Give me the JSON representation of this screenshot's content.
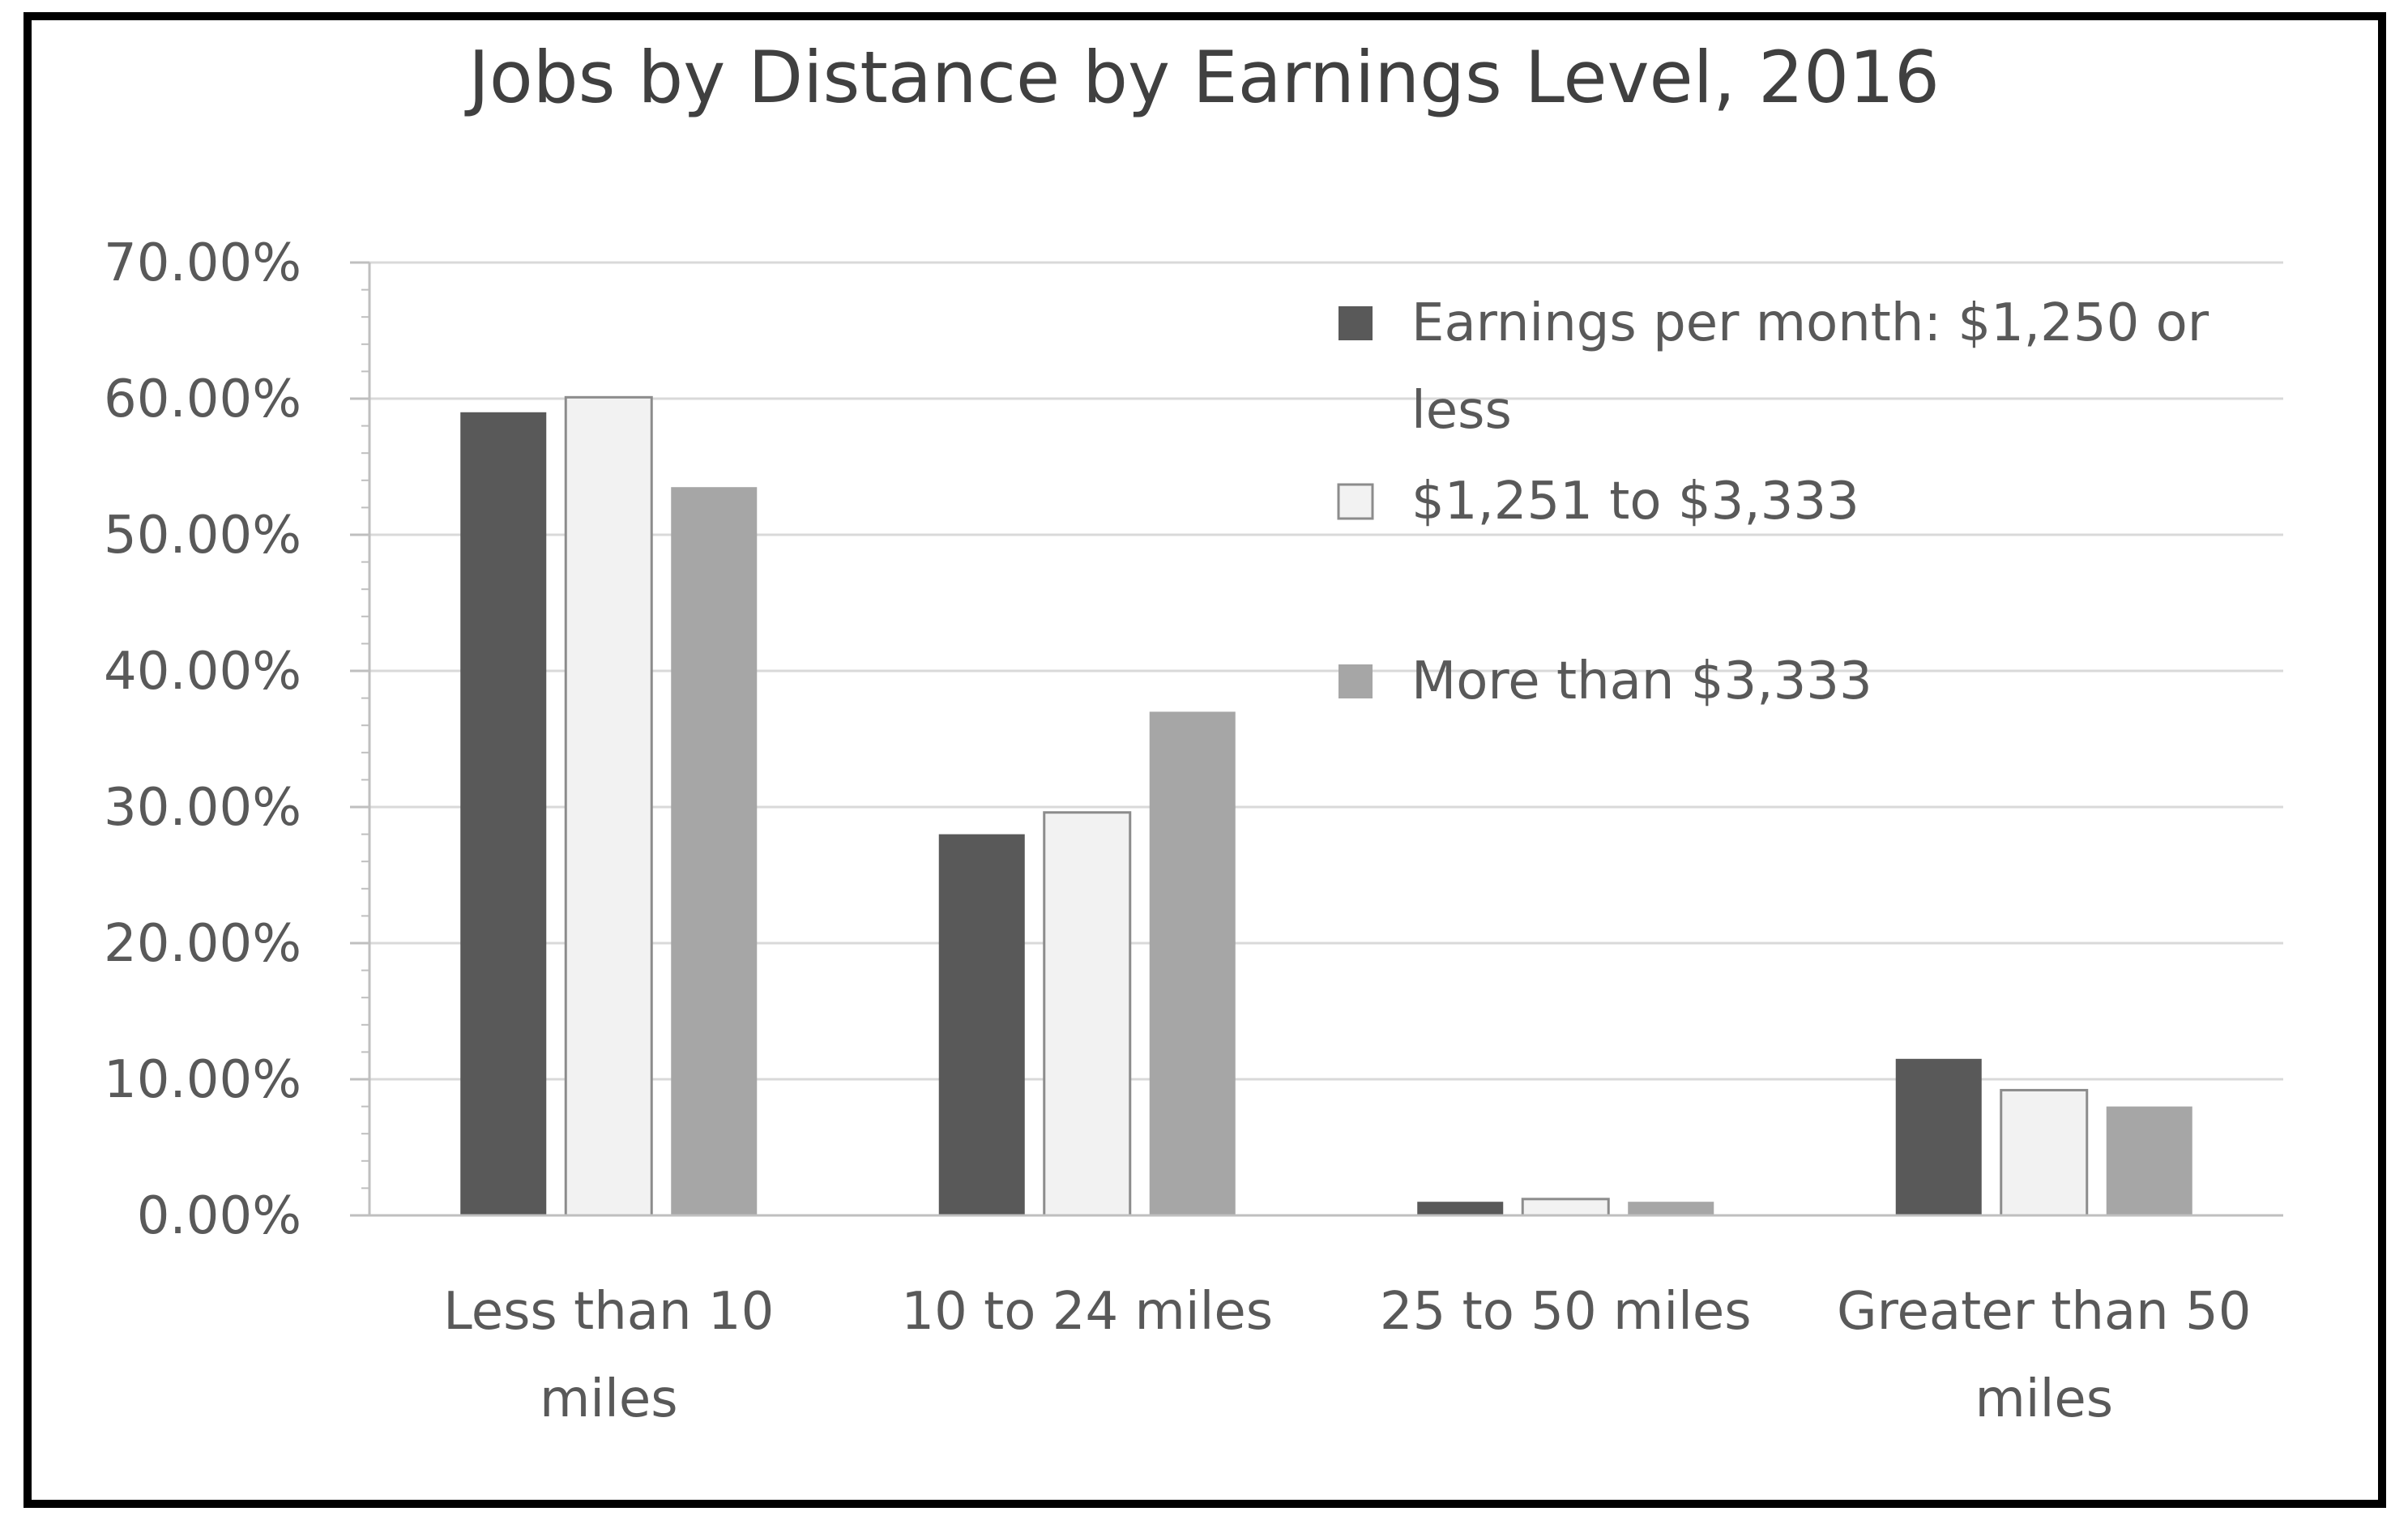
{
  "chart_data": {
    "type": "bar",
    "title": "Jobs by Distance by Earnings Level, 2016",
    "xlabel": "",
    "ylabel": "",
    "categories": [
      [
        "Less than 10",
        "miles"
      ],
      [
        "10 to 24 miles"
      ],
      [
        "25 to 50 miles"
      ],
      [
        "Greater than 50",
        "miles"
      ]
    ],
    "series": [
      {
        "name": "Earnings per month: $1,250 or less",
        "legend_lines": [
          "Earnings per month: $1,250 or",
          "less"
        ],
        "color": "#595959",
        "values": [
          59.0,
          28.0,
          1.0,
          11.5
        ]
      },
      {
        "name": "$1,251 to $3,333",
        "legend_lines": [
          "$1,251 to $3,333"
        ],
        "color": "#f2f2f2",
        "values": [
          60.1,
          29.6,
          1.2,
          9.2
        ]
      },
      {
        "name": "More than $3,333",
        "legend_lines": [
          "More than $3,333"
        ],
        "color": "#a6a6a6",
        "values": [
          53.5,
          37.0,
          1.0,
          8.0
        ]
      }
    ],
    "ylim": [
      0,
      70
    ],
    "yticks": [
      0,
      10,
      20,
      30,
      40,
      50,
      60,
      70
    ],
    "ytick_labels": [
      "0.00%",
      "10.00%",
      "20.00%",
      "30.00%",
      "40.00%",
      "50.00%",
      "60.00%",
      "70.00%"
    ],
    "grid": true,
    "legend_position": "top-right"
  }
}
